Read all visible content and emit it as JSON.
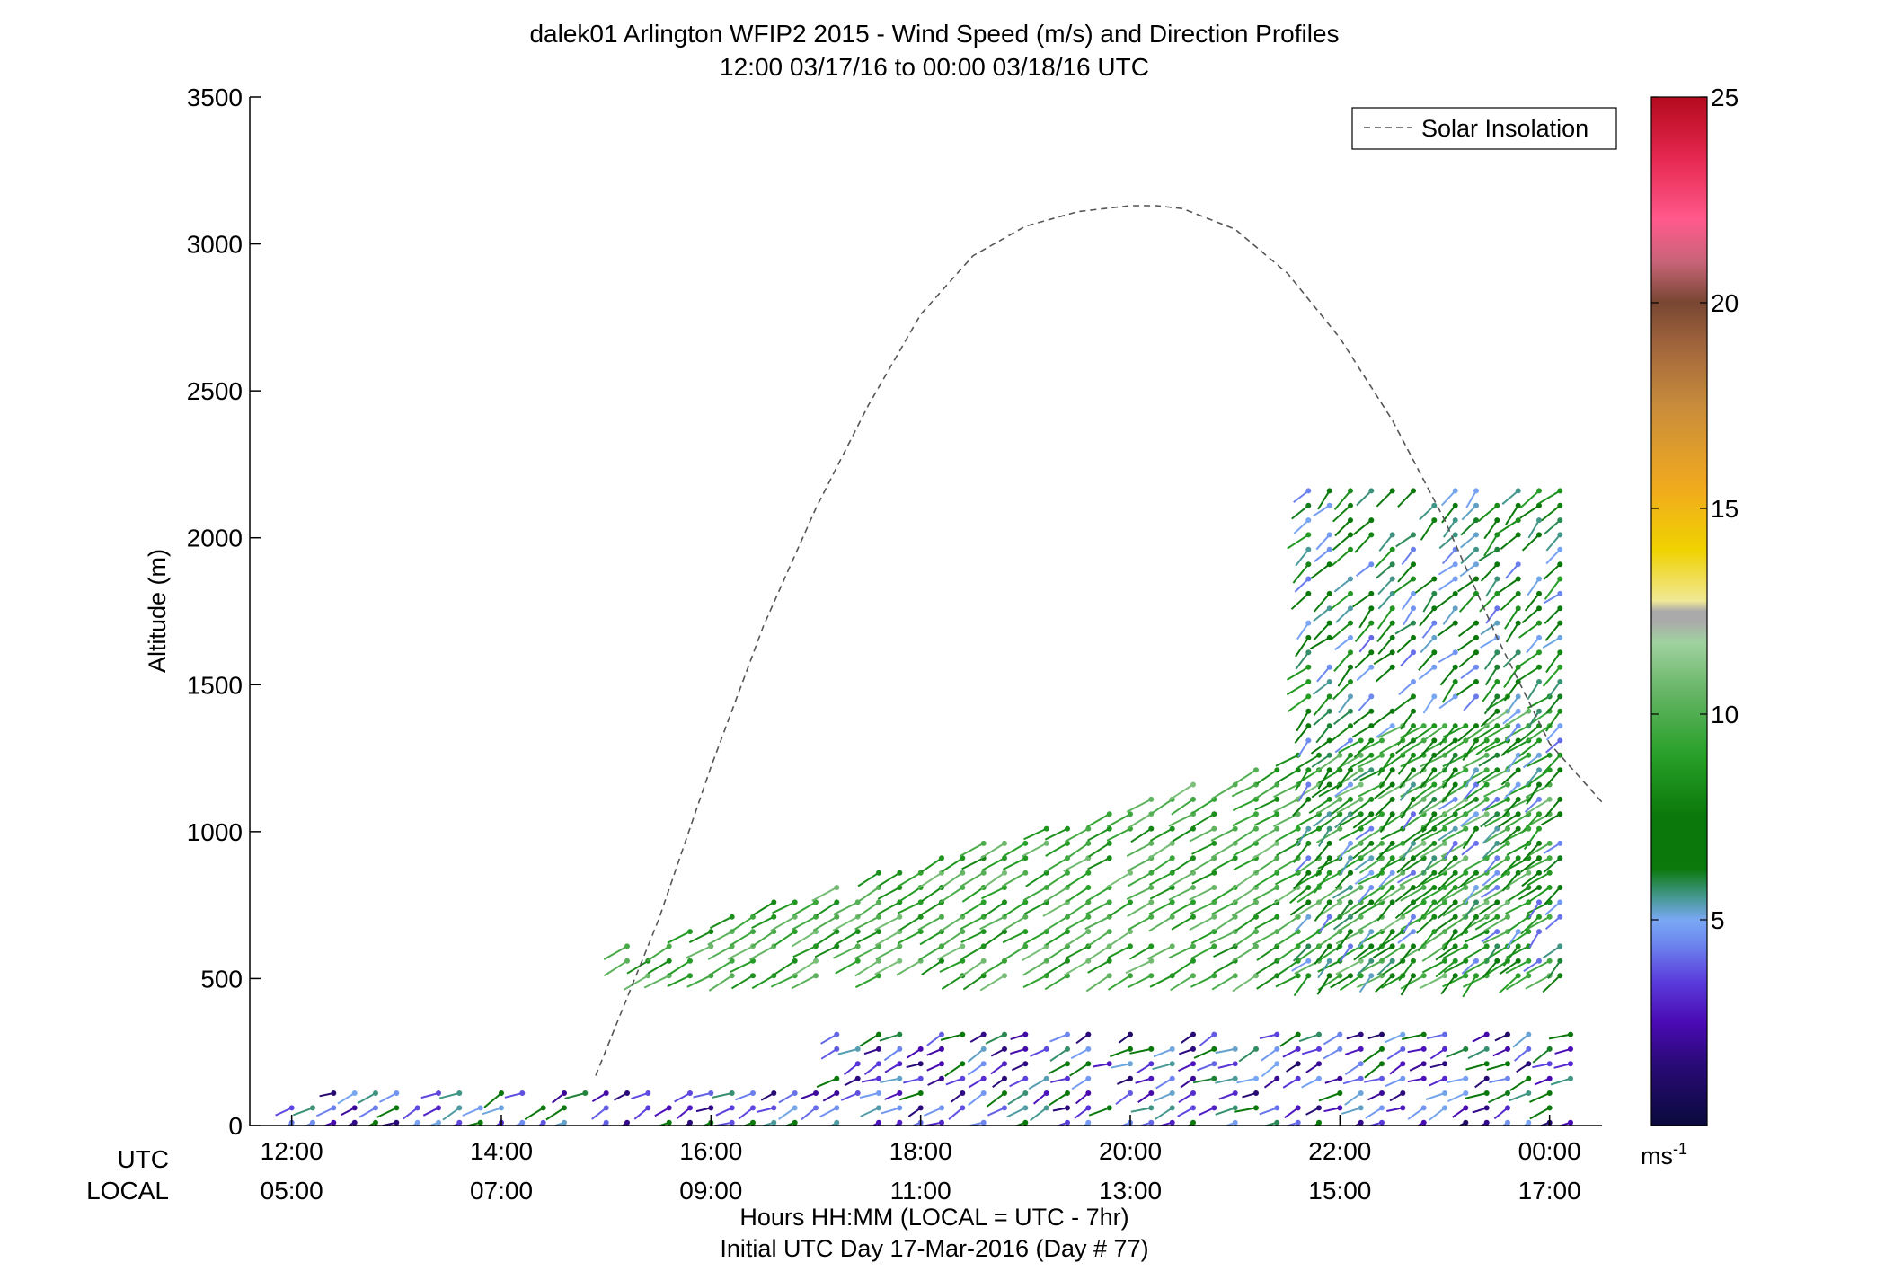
{
  "chart_data": {
    "type": "wind-barb profile",
    "title": "dalek01 Arlington WFIP2 2015 - Wind Speed (m/s) and Direction Profiles",
    "subtitle": "12:00 03/17/16 to 00:00 03/18/16  UTC",
    "ylabel": "Altitude (m)",
    "ylim": [
      0,
      3500
    ],
    "yticks": [
      0,
      500,
      1000,
      1500,
      2000,
      2500,
      3000,
      3500
    ],
    "xlim_hours": [
      11.6,
      24.5
    ],
    "xrow_labels": {
      "utc": "UTC",
      "local": "LOCAL"
    },
    "xticks": [
      {
        "hour": 12,
        "utc": "12:00",
        "local": "05:00"
      },
      {
        "hour": 14,
        "utc": "14:00",
        "local": "07:00"
      },
      {
        "hour": 16,
        "utc": "16:00",
        "local": "09:00"
      },
      {
        "hour": 18,
        "utc": "18:00",
        "local": "11:00"
      },
      {
        "hour": 20,
        "utc": "20:00",
        "local": "13:00"
      },
      {
        "hour": 22,
        "utc": "22:00",
        "local": "15:00"
      },
      {
        "hour": 24,
        "utc": "00:00",
        "local": "17:00"
      }
    ],
    "xlabel": "Hours HH:MM  (LOCAL = UTC - 7hr)",
    "xlabel2": "Initial UTC Day 17-Mar-2016 (Day # 77)",
    "legend": {
      "label": "Solar Insolation",
      "placement": "top-right"
    },
    "solar_insolation": {
      "hours": [
        14.9,
        15.5,
        16.0,
        16.5,
        17.0,
        17.5,
        18.0,
        18.5,
        19.0,
        19.5,
        20.0,
        20.25,
        20.5,
        21.0,
        21.5,
        22.0,
        22.5,
        23.0,
        23.5,
        24.0,
        24.5
      ],
      "altitude_m": [
        170,
        700,
        1220,
        1700,
        2100,
        2450,
        2760,
        2960,
        3060,
        3110,
        3130,
        3130,
        3120,
        3050,
        2900,
        2680,
        2400,
        2060,
        1660,
        1300,
        1100
      ]
    },
    "colorbar": {
      "range": [
        0,
        25
      ],
      "ticks": [
        5,
        10,
        15,
        20,
        25
      ],
      "unit": "ms",
      "unit_exp": "-1",
      "stops": [
        [
          0.0,
          "#0a0a3c"
        ],
        [
          0.06,
          "#2a0a78"
        ],
        [
          0.1,
          "#4a0ab4"
        ],
        [
          0.14,
          "#5a3cdc"
        ],
        [
          0.18,
          "#6e8cf0"
        ],
        [
          0.2,
          "#7aa8f4"
        ],
        [
          0.22,
          "#4a9a9a"
        ],
        [
          0.25,
          "#0a780a"
        ],
        [
          0.3,
          "#0a780a"
        ],
        [
          0.36,
          "#28a028"
        ],
        [
          0.42,
          "#64b464"
        ],
        [
          0.47,
          "#a0d2a0"
        ],
        [
          0.49,
          "#aaaaaa"
        ],
        [
          0.5,
          "#aaaaaa"
        ],
        [
          0.51,
          "#f0e896"
        ],
        [
          0.56,
          "#f0d200"
        ],
        [
          0.62,
          "#f0aa1e"
        ],
        [
          0.7,
          "#c88c3c"
        ],
        [
          0.76,
          "#a0643c"
        ],
        [
          0.8,
          "#784632"
        ],
        [
          0.84,
          "#c86478"
        ],
        [
          0.88,
          "#ff5a8c"
        ],
        [
          0.94,
          "#e62850"
        ],
        [
          1.0,
          "#b40a1e"
        ]
      ]
    },
    "profiles": {
      "regimes": [
        {
          "name": "surface layer",
          "hours": [
            12.0,
            24.2
          ],
          "alt_m": [
            0,
            320
          ],
          "speed_ms": [
            1,
            7
          ],
          "dir_from_deg": [
            230,
            260
          ]
        },
        {
          "name": "mid layer",
          "hours": [
            15.2,
            24.1
          ],
          "alt_m": [
            500,
            1550
          ],
          "speed_ms": [
            8,
            11
          ],
          "dir_from_deg": [
            235,
            245
          ]
        },
        {
          "name": "deep layer",
          "hours": [
            21.7,
            24.1
          ],
          "alt_m": [
            500,
            2200
          ],
          "speed_ms": [
            4,
            9
          ],
          "dir_from_deg": [
            210,
            240
          ]
        }
      ],
      "time_step_h": 0.2,
      "alt_step_m": 50
    }
  }
}
